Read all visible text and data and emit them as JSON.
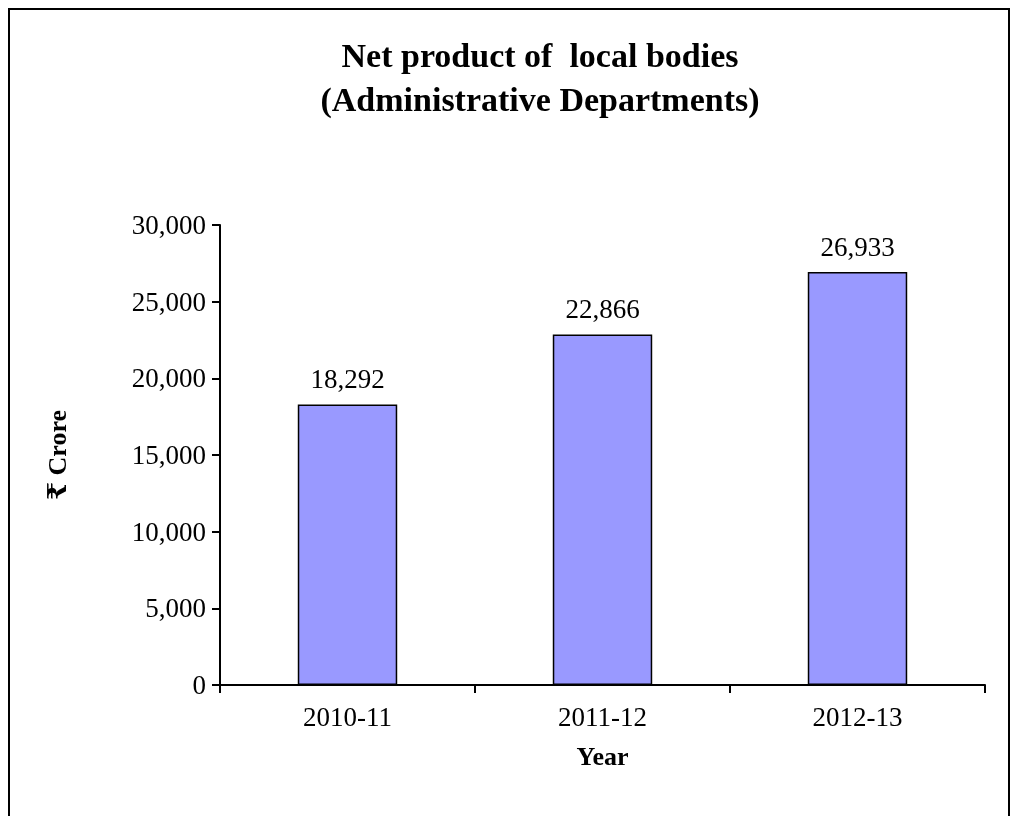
{
  "chart_data": {
    "type": "bar",
    "title": "Net product of  local bodies\n(Administrative Departments)",
    "xlabel": "Year",
    "ylabel": "₹ Crore",
    "categories": [
      "2010-11",
      "2011-12",
      "2012-13"
    ],
    "values": [
      18292,
      22866,
      26933
    ],
    "color": "#9999ff",
    "value_labels": [
      "18,292",
      "22,866",
      "26,933"
    ],
    "ylim": [
      0,
      30000
    ],
    "yticks": [
      0,
      {
        "value": 5000,
        "label": "5,000"
      },
      {
        "value": 10000,
        "label": "10,000"
      },
      {
        "value": 15000,
        "label": "15,000"
      },
      {
        "value": 20000,
        "label": "20,000"
      },
      {
        "value": 25000,
        "label": "25,000"
      },
      {
        "value": 30000,
        "label": "30,000"
      }
    ],
    "grid": false
  }
}
